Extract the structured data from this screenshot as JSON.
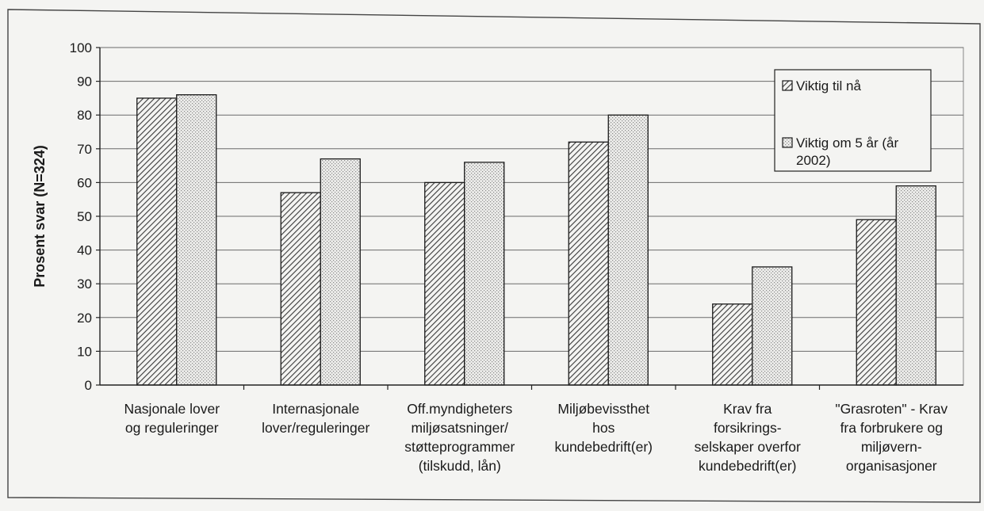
{
  "chart_data": {
    "type": "bar",
    "ylabel": "Prosent svar (N=324)",
    "ylim": [
      0,
      100
    ],
    "ytick_step": 10,
    "yticks": [
      "0",
      "10",
      "20",
      "30",
      "40",
      "50",
      "60",
      "70",
      "80",
      "90",
      "100"
    ],
    "grid": true,
    "legend_position": "top-right",
    "categories": [
      [
        "Nasjonale lover",
        "og reguleringer"
      ],
      [
        "Internasjonale",
        "lover/reguleringer"
      ],
      [
        "Off.myndigheters",
        "miljøsatsninger/",
        "støtteprogrammer",
        "(tilskudd, lån)"
      ],
      [
        "Miljøbevissthet",
        "hos",
        "kundebedrift(er)"
      ],
      [
        "Krav fra",
        "forsikrings-",
        "selskaper overfor",
        "kundebedrift(er)"
      ],
      [
        "\"Grasroten\" - Krav",
        "fra forbrukere og",
        "miljøvern-",
        "organisasjoner"
      ]
    ],
    "series": [
      {
        "name": "Viktig til nå",
        "values": [
          85,
          57,
          60,
          72,
          24,
          49
        ],
        "pattern": "hatch",
        "color": "#3a3a3a"
      },
      {
        "name": "Viktig om 5 år (år 2002)",
        "legend_lines": [
          "Viktig om 5 år (år",
          "2002)"
        ],
        "values": [
          86,
          67,
          66,
          80,
          35,
          59
        ],
        "pattern": "dots",
        "color": "#bdbdbd"
      }
    ]
  }
}
